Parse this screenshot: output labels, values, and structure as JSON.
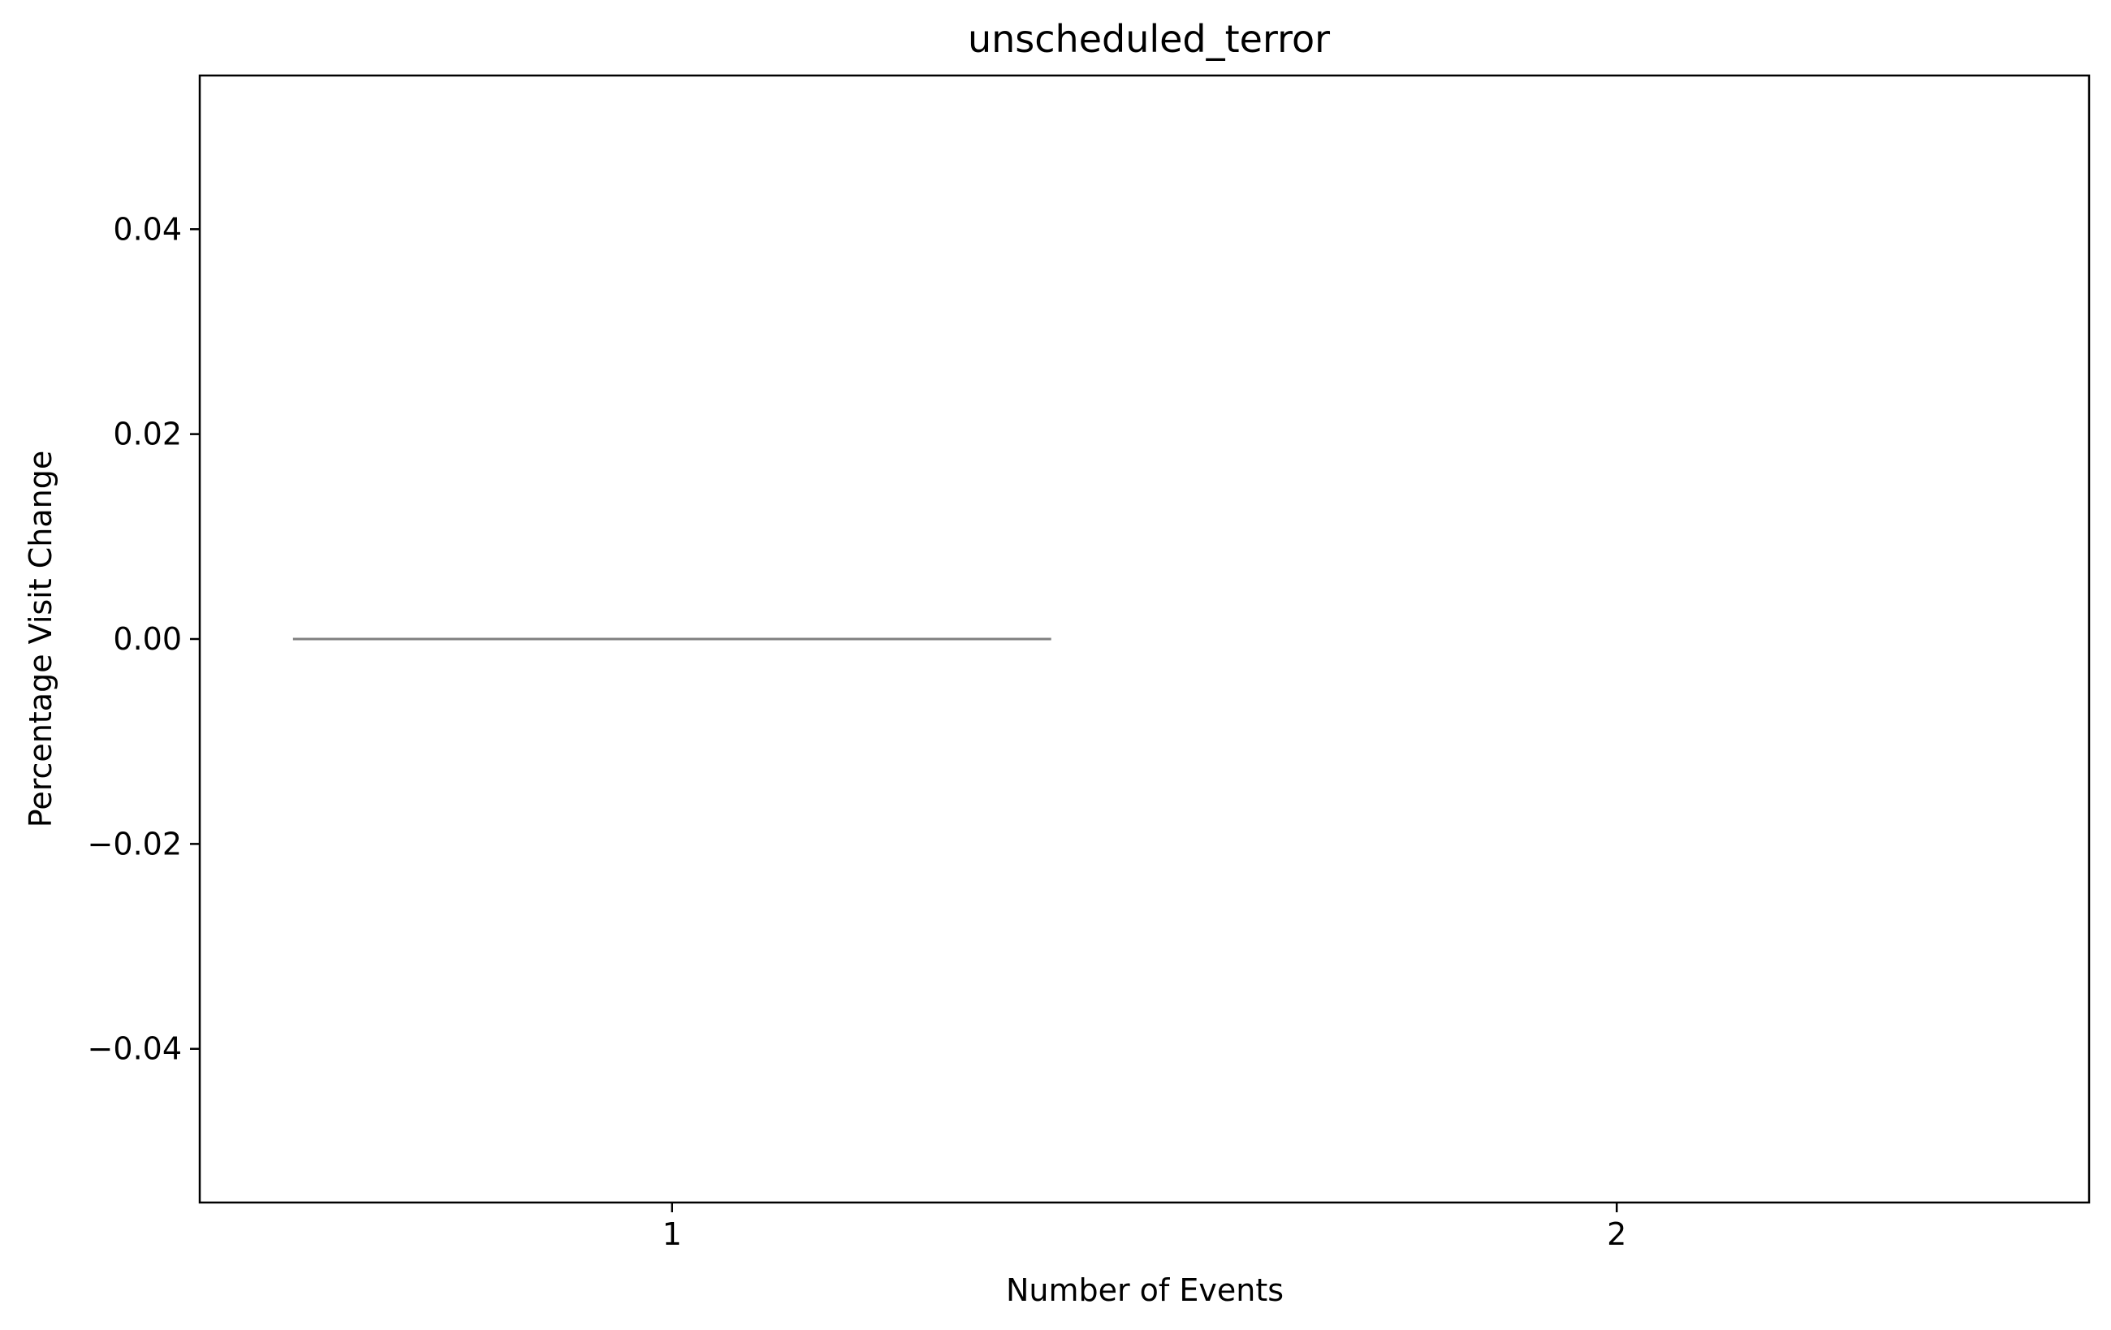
{
  "chart_data": {
    "type": "box",
    "title": "unscheduled_terror",
    "xlabel": "Number of Events",
    "ylabel": "Percentage Visit Change",
    "categories": [
      "1",
      "2"
    ],
    "series": [
      {
        "values": [
          {
            "category": "1",
            "min": 0.0,
            "q1": 0.0,
            "median": 0.0,
            "q3": 0.0,
            "max": 0.0
          },
          {
            "category": "2",
            "min": null,
            "q1": null,
            "median": null,
            "q3": null,
            "max": null
          }
        ]
      }
    ],
    "ylim": [
      -0.055,
      0.055
    ],
    "yticks": [
      -0.04,
      -0.02,
      0.0,
      0.02,
      0.04
    ],
    "ytick_labels": [
      "−0.04",
      "−0.02",
      "0.00",
      "0.02",
      "0.04"
    ],
    "grid": false,
    "colors": {
      "box_line": "#808080",
      "axes": "#000000"
    }
  }
}
